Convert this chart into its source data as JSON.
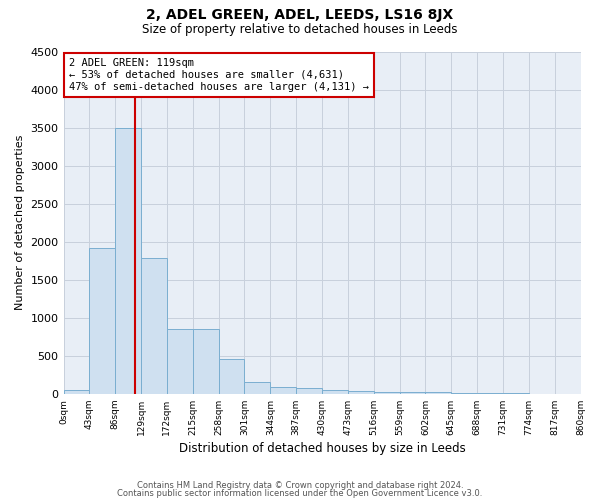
{
  "title": "2, ADEL GREEN, ADEL, LEEDS, LS16 8JX",
  "subtitle": "Size of property relative to detached houses in Leeds",
  "xlabel": "Distribution of detached houses by size in Leeds",
  "ylabel": "Number of detached properties",
  "bar_color": "#cfe0f0",
  "bar_edge_color": "#7aaed0",
  "bar_heights": [
    50,
    1920,
    3500,
    1780,
    850,
    850,
    460,
    160,
    90,
    70,
    55,
    40,
    30,
    25,
    20,
    10,
    5,
    5,
    3,
    3
  ],
  "bin_edges": [
    0,
    43,
    86,
    129,
    172,
    215,
    258,
    301,
    344,
    387,
    430,
    473,
    516,
    559,
    602,
    645,
    688,
    731,
    774,
    817,
    860
  ],
  "bin_labels": [
    "0sqm",
    "43sqm",
    "86sqm",
    "129sqm",
    "172sqm",
    "215sqm",
    "258sqm",
    "301sqm",
    "344sqm",
    "387sqm",
    "430sqm",
    "473sqm",
    "516sqm",
    "559sqm",
    "602sqm",
    "645sqm",
    "688sqm",
    "731sqm",
    "774sqm",
    "817sqm",
    "860sqm"
  ],
  "ylim": [
    0,
    4500
  ],
  "yticks": [
    0,
    500,
    1000,
    1500,
    2000,
    2500,
    3000,
    3500,
    4000,
    4500
  ],
  "property_sqm": 119,
  "bin_size": 43,
  "annotation_line1": "2 ADEL GREEN: 119sqm",
  "annotation_line2": "← 53% of detached houses are smaller (4,631)",
  "annotation_line3": "47% of semi-detached houses are larger (4,131) →",
  "annotation_box_color": "#ffffff",
  "annotation_box_edge_color": "#cc0000",
  "vline_color": "#cc0000",
  "grid_color": "#c8d0dc",
  "background_color": "#e8eef6",
  "footer_line1": "Contains HM Land Registry data © Crown copyright and database right 2024.",
  "footer_line2": "Contains public sector information licensed under the Open Government Licence v3.0."
}
